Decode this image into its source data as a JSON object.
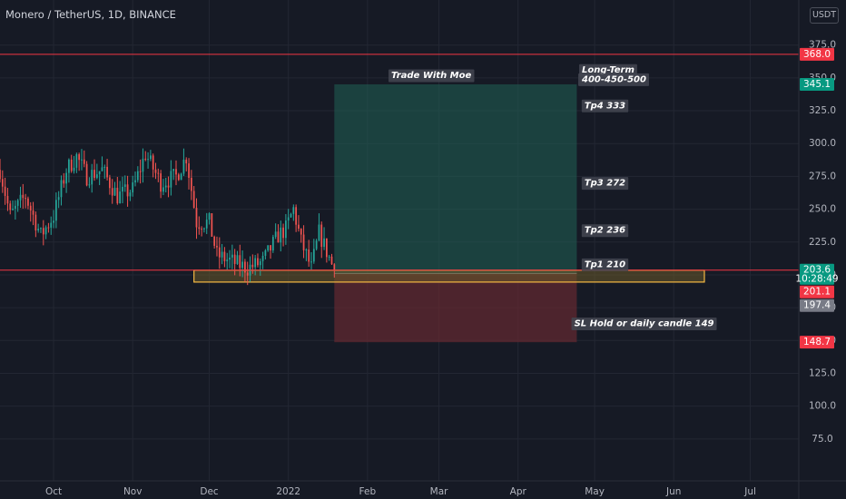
{
  "header": {
    "symbol_line": "Monero / TetherUS, 1D, BINANCE",
    "currency": "USDT"
  },
  "colors": {
    "background": "#161a25",
    "up": "#26a69a",
    "down": "#ef5350",
    "profit_zone": "#1f5b52",
    "loss_zone": "#6b2a31",
    "support_box": "#f5b942"
  },
  "chart_data": {
    "type": "candlestick",
    "symbol": "XMR/USDT",
    "interval": "1D",
    "exchange": "BINANCE",
    "ylim": [
      50,
      390
    ],
    "y_ticks": [
      75,
      100,
      125,
      150,
      175,
      200,
      225,
      250,
      275,
      300,
      325,
      350,
      375
    ],
    "x_ticks": [
      {
        "label": "Oct",
        "date": "2021-10-01"
      },
      {
        "label": "Nov",
        "date": "2021-11-01"
      },
      {
        "label": "Dec",
        "date": "2021-12-01"
      },
      {
        "label": "2022",
        "date": "2022-01-01"
      },
      {
        "label": "Feb",
        "date": "2022-02-01"
      },
      {
        "label": "Mar",
        "date": "2022-03-01"
      },
      {
        "label": "Apr",
        "date": "2022-04-01"
      },
      {
        "label": "May",
        "date": "2022-05-01"
      },
      {
        "label": "Jun",
        "date": "2022-06-01"
      },
      {
        "label": "Jul",
        "date": "2022-07-01"
      }
    ],
    "x_range": [
      "2021-09-10",
      "2022-07-20"
    ],
    "price_path": {
      "start_date": "2021-09-10",
      "end_date": "2022-01-19",
      "anchors": [
        {
          "date": "2021-09-10",
          "price": 280
        },
        {
          "date": "2021-09-14",
          "price": 245
        },
        {
          "date": "2021-09-20",
          "price": 260
        },
        {
          "date": "2021-09-26",
          "price": 230
        },
        {
          "date": "2021-10-01",
          "price": 245
        },
        {
          "date": "2021-10-06",
          "price": 280
        },
        {
          "date": "2021-10-10",
          "price": 290
        },
        {
          "date": "2021-10-14",
          "price": 275
        },
        {
          "date": "2021-10-20",
          "price": 280
        },
        {
          "date": "2021-10-26",
          "price": 260
        },
        {
          "date": "2021-11-01",
          "price": 265
        },
        {
          "date": "2021-11-06",
          "price": 292
        },
        {
          "date": "2021-11-12",
          "price": 270
        },
        {
          "date": "2021-11-18",
          "price": 275
        },
        {
          "date": "2021-11-22",
          "price": 290
        },
        {
          "date": "2021-11-26",
          "price": 240
        },
        {
          "date": "2021-12-01",
          "price": 240
        },
        {
          "date": "2021-12-04",
          "price": 215
        },
        {
          "date": "2021-12-10",
          "price": 210
        },
        {
          "date": "2021-12-16",
          "price": 205
        },
        {
          "date": "2021-12-22",
          "price": 210
        },
        {
          "date": "2021-12-28",
          "price": 230
        },
        {
          "date": "2021-12-31",
          "price": 235
        },
        {
          "date": "2022-01-03",
          "price": 250
        },
        {
          "date": "2022-01-06",
          "price": 225
        },
        {
          "date": "2022-01-10",
          "price": 205
        },
        {
          "date": "2022-01-13",
          "price": 232
        },
        {
          "date": "2022-01-19",
          "price": 203.6
        }
      ]
    },
    "horizontal_lines": [
      {
        "price": 368.0,
        "color": "#f23645"
      },
      {
        "price": 203.6,
        "color": "#f23645"
      }
    ],
    "price_tags": [
      {
        "price": 368.0,
        "label": "368.0",
        "color": "#f23645"
      },
      {
        "price": 345.1,
        "label": "345.1",
        "color": "#089981"
      },
      {
        "price": 203.6,
        "label": "203.6",
        "sublabel": "10:28:49",
        "color": "#089981"
      },
      {
        "price": 201.1,
        "label": "201.1",
        "color": "#f23645"
      },
      {
        "price": 197.4,
        "label": "197.4",
        "color": "#787b86"
      },
      {
        "price": 148.7,
        "label": "148.7",
        "color": "#f23645"
      }
    ],
    "position": {
      "start_date": "2022-01-19",
      "end_date": "2022-04-24",
      "entry": 201.1,
      "target": 345.1,
      "stop": 148.7
    },
    "support_zone": {
      "start_date": "2021-11-25",
      "end_date": "2022-06-13",
      "top": 203.5,
      "bottom": 194.5
    },
    "annotations": [
      {
        "text": "Trade With Moe",
        "date": "2022-02-26",
        "price": 352,
        "anchor": "middle"
      },
      {
        "text": "Long-Term",
        "date": "2022-04-26",
        "price": 356
      },
      {
        "text": "400-450-500",
        "date": "2022-04-26",
        "price": 349
      },
      {
        "text": "Tp4 333",
        "date": "2022-04-27",
        "price": 329
      },
      {
        "text": "Tp3 272",
        "date": "2022-04-27",
        "price": 270
      },
      {
        "text": "Tp2 236",
        "date": "2022-04-27",
        "price": 234
      },
      {
        "text": "Tp1 210",
        "date": "2022-04-27",
        "price": 208
      },
      {
        "text": "SL Hold or daily candle 149",
        "date": "2022-04-23",
        "price": 163
      }
    ]
  }
}
